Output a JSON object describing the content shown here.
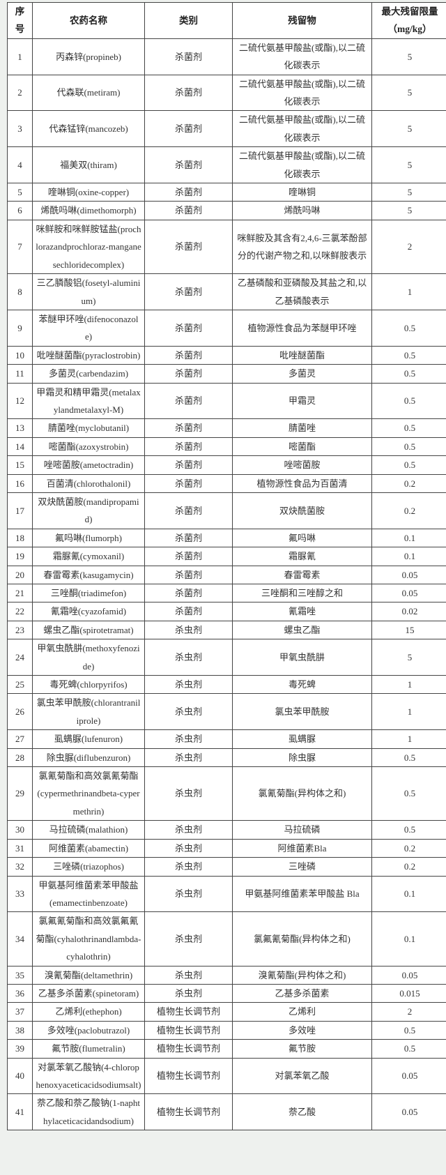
{
  "header": {
    "no": "序号",
    "name": "农药名称",
    "category": "类别",
    "residue": "残留物",
    "mrl": "最大残留限量",
    "mrl_unit": "（mg/kg）"
  },
  "rows": [
    {
      "no": "1",
      "name": "丙森锌(propineb)",
      "category": "杀菌剂",
      "residue": "二硫代氨基甲酸盐(或酯),以二硫化碳表示",
      "mrl": "5"
    },
    {
      "no": "2",
      "name": "代森联(metiram)",
      "category": "杀菌剂",
      "residue": "二硫代氨基甲酸盐(或酯),以二硫化碳表示",
      "mrl": "5"
    },
    {
      "no": "3",
      "name": "代森锰锌(mancozeb)",
      "category": "杀菌剂",
      "residue": "二硫代氨基甲酸盐(或酯),以二硫化碳表示",
      "mrl": "5"
    },
    {
      "no": "4",
      "name": "福美双(thiram)",
      "category": "杀菌剂",
      "residue": "二硫代氨基甲酸盐(或酯),以二硫化碳表示",
      "mrl": "5"
    },
    {
      "no": "5",
      "name": "喹啉铜(oxine-copper)",
      "category": "杀菌剂",
      "residue": "喹啉铜",
      "mrl": "5"
    },
    {
      "no": "6",
      "name": "烯酰吗啉(dimethomorph)",
      "category": "杀菌剂",
      "residue": "烯酰吗啉",
      "mrl": "5"
    },
    {
      "no": "7",
      "name": "咪鲜胺和咪鲜胺锰盐(prochlorazandprochloraz-manganesechloridecomplex)",
      "category": "杀菌剂",
      "residue": "咪鲜胺及其含有2,4,6-三氯苯酚部分的代谢产物之和,以咪鲜胺表示",
      "mrl": "2"
    },
    {
      "no": "8",
      "name": "三乙膦酸铝(fosetyl-aluminium)",
      "category": "杀菌剂",
      "residue": "乙基磷酸和亚磷酸及其盐之和,以乙基磷酸表示",
      "mrl": "1"
    },
    {
      "no": "9",
      "name": "苯醚甲环唑(difenoconazole)",
      "category": "杀菌剂",
      "residue": "植物源性食品为苯醚甲环唑",
      "mrl": "0.5"
    },
    {
      "no": "10",
      "name": "吡唑醚菌酯(pyraclostrobin)",
      "category": "杀菌剂",
      "residue": "吡唑醚菌酯",
      "mrl": "0.5"
    },
    {
      "no": "11",
      "name": "多菌灵(carbendazim)",
      "category": "杀菌剂",
      "residue": "多菌灵",
      "mrl": "0.5"
    },
    {
      "no": "12",
      "name": "甲霜灵和精甲霜灵(metalaxylandmetalaxyl-M)",
      "category": "杀菌剂",
      "residue": "甲霜灵",
      "mrl": "0.5"
    },
    {
      "no": "13",
      "name": "腈菌唑(myclobutanil)",
      "category": "杀菌剂",
      "residue": "腈菌唑",
      "mrl": "0.5"
    },
    {
      "no": "14",
      "name": "嘧菌酯(azoxystrobin)",
      "category": "杀菌剂",
      "residue": "嘧菌酯",
      "mrl": "0.5"
    },
    {
      "no": "15",
      "name": "唑嘧菌胺(ametoctradin)",
      "category": "杀菌剂",
      "residue": "唑嘧菌胺",
      "mrl": "0.5"
    },
    {
      "no": "16",
      "name": "百菌清(chlorothalonil)",
      "category": "杀菌剂",
      "residue": "植物源性食品为百菌清",
      "mrl": "0.2"
    },
    {
      "no": "17",
      "name": "双炔酰菌胺(mandipropamid)",
      "category": "杀菌剂",
      "residue": "双炔酰菌胺",
      "mrl": "0.2"
    },
    {
      "no": "18",
      "name": "氟吗啉(flumorph)",
      "category": "杀菌剂",
      "residue": "氟吗啉",
      "mrl": "0.1"
    },
    {
      "no": "19",
      "name": "霜脲氰(cymoxanil)",
      "category": "杀菌剂",
      "residue": "霜脲氰",
      "mrl": "0.1"
    },
    {
      "no": "20",
      "name": "春雷霉素(kasugamycin)",
      "category": "杀菌剂",
      "residue": "春雷霉素",
      "mrl": "0.05"
    },
    {
      "no": "21",
      "name": "三唑酮(triadimefon)",
      "category": "杀菌剂",
      "residue": "三唑酮和三唑醇之和",
      "mrl": "0.05"
    },
    {
      "no": "22",
      "name": "氰霜唑(cyazofamid)",
      "category": "杀菌剂",
      "residue": "氰霜唑",
      "mrl": "0.02"
    },
    {
      "no": "23",
      "name": "螺虫乙酯(spirotetramat)",
      "category": "杀虫剂",
      "residue": "螺虫乙酯",
      "mrl": "15"
    },
    {
      "no": "24",
      "name": "甲氧虫酰肼(methoxyfenozide)",
      "category": "杀虫剂",
      "residue": "甲氧虫酰肼",
      "mrl": "5"
    },
    {
      "no": "25",
      "name": "毒死蜱(chlorpyrifos)",
      "category": "杀虫剂",
      "residue": "毒死蜱",
      "mrl": "1"
    },
    {
      "no": "26",
      "name": "氯虫苯甲酰胺(chlorantraniliprole)",
      "category": "杀虫剂",
      "residue": "氯虫苯甲酰胺",
      "mrl": "1"
    },
    {
      "no": "27",
      "name": "虱螨脲(lufenuron)",
      "category": "杀虫剂",
      "residue": "虱螨脲",
      "mrl": "1"
    },
    {
      "no": "28",
      "name": "除虫脲(diflubenzuron)",
      "category": "杀虫剂",
      "residue": "除虫脲",
      "mrl": "0.5"
    },
    {
      "no": "29",
      "name": "氯氰菊酯和高效氯氰菊酯(cypermethrinandbeta-cypermethrin)",
      "category": "杀虫剂",
      "residue": "氯氰菊酯(异构体之和)",
      "mrl": "0.5"
    },
    {
      "no": "30",
      "name": "马拉硫磷(malathion)",
      "category": "杀虫剂",
      "residue": "马拉硫磷",
      "mrl": "0.5"
    },
    {
      "no": "31",
      "name": "阿维菌素(abamectin)",
      "category": "杀虫剂",
      "residue": "阿维菌素Bla",
      "mrl": "0.2"
    },
    {
      "no": "32",
      "name": "三唑磷(triazophos)",
      "category": "杀虫剂",
      "residue": "三唑磷",
      "mrl": "0.2"
    },
    {
      "no": "33",
      "name": "甲氨基阿维菌素苯甲酸盐(emamectinbenzoate)",
      "category": "杀虫剂",
      "residue": "甲氨基阿维菌素苯甲酸盐 Bla",
      "mrl": "0.1"
    },
    {
      "no": "34",
      "name": "氯氟氰菊酯和高效氯氟氰菊酯(cyhalothrinandlambda-cyhalothrin)",
      "category": "杀虫剂",
      "residue": "氯氟氰菊酯(异构体之和)",
      "mrl": "0.1"
    },
    {
      "no": "35",
      "name": "溴氰菊酯(deltamethrin)",
      "category": "杀虫剂",
      "residue": "溴氰菊酯(异构体之和)",
      "mrl": "0.05"
    },
    {
      "no": "36",
      "name": "乙基多杀菌素(spinetoram)",
      "category": "杀虫剂",
      "residue": "乙基多杀菌素",
      "mrl": "0.015"
    },
    {
      "no": "37",
      "name": "乙烯利(ethephon)",
      "category": "植物生长调节剂",
      "residue": "乙烯利",
      "mrl": "2"
    },
    {
      "no": "38",
      "name": "多效唑(paclobutrazol)",
      "category": "植物生长调节剂",
      "residue": "多效唑",
      "mrl": "0.5"
    },
    {
      "no": "39",
      "name": "氟节胺(flumetralin)",
      "category": "植物生长调节剂",
      "residue": "氟节胺",
      "mrl": "0.5"
    },
    {
      "no": "40",
      "name": "对氯苯氧乙酸钠(4-chlorophenoxyaceticacidsodiumsalt)",
      "category": "植物生长调节剂",
      "residue": "对氯苯氧乙酸",
      "mrl": "0.05"
    },
    {
      "no": "41",
      "name": "萘乙酸和萘乙酸钠(1-naphthylaceticacidandsodium)",
      "category": "植物生长调节剂",
      "residue": "萘乙酸",
      "mrl": "0.05"
    }
  ]
}
